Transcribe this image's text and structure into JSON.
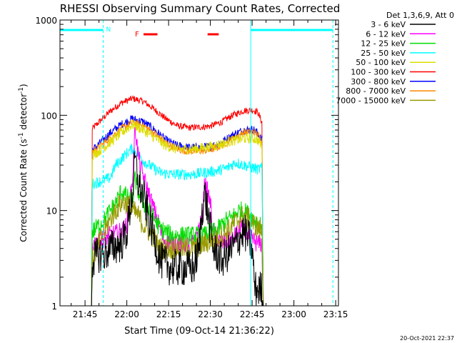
{
  "chart_data": {
    "type": "line",
    "title": "RHESSI Observing Summary Count Rates, Corrected",
    "xlabel": "Start Time (09-Oct-14 21:36:22)",
    "ylabel_main": "Corrected Count Rate (s",
    "ylabel_sup1": "-1",
    "ylabel_mid": " detector",
    "ylabel_sup2": "-1",
    "ylabel_end": ")",
    "x_unit": "minutes since 21:36:22",
    "xlim": [
      0,
      100
    ],
    "ylim": [
      1,
      1000
    ],
    "yscale": "log",
    "x_ticks": [
      {
        "t": 9,
        "label": "21:45"
      },
      {
        "t": 24,
        "label": "22:00"
      },
      {
        "t": 39,
        "label": "22:15"
      },
      {
        "t": 54,
        "label": "22:30"
      },
      {
        "t": 69,
        "label": "22:45"
      },
      {
        "t": 84,
        "label": "23:00"
      },
      {
        "t": 99,
        "label": "23:15"
      }
    ],
    "y_ticks": [
      {
        "v": 1,
        "label": "1"
      },
      {
        "v": 10,
        "label": "10"
      },
      {
        "v": 100,
        "label": "100"
      },
      {
        "v": 1000,
        "label": "1000"
      }
    ],
    "legend": {
      "header": "Det 1,3,6,9, Att 0",
      "placement": "right",
      "entries": [
        {
          "label": "3 - 6 keV",
          "color": "#000000"
        },
        {
          "label": "6 - 12 keV",
          "color": "#ff00ff"
        },
        {
          "label": "12 - 25 keV",
          "color": "#00dd00"
        },
        {
          "label": "25 - 50 keV",
          "color": "#00ffff"
        },
        {
          "label": "50 - 100 keV",
          "color": "#dddd00"
        },
        {
          "label": "100 - 300 keV",
          "color": "#ff0000"
        },
        {
          "label": "300 - 800 keV",
          "color": "#0000ff"
        },
        {
          "label": "800 - 7000 keV",
          "color": "#ff8800"
        },
        {
          "label": "7000 - 15000 keV",
          "color": "#999900"
        }
      ]
    },
    "annotations": {
      "night_label": "N",
      "flare_label": "F",
      "night_color": "#00ffff",
      "flare_color": "#ff0000",
      "night_bars": [
        [
          0,
          15.5
        ],
        [
          68.5,
          98
        ]
      ],
      "night_markers": [
        0,
        15.5,
        68.5,
        98
      ],
      "flare_bars": [
        [
          30,
          35
        ],
        [
          53,
          57
        ]
      ]
    },
    "series": [
      {
        "name": "100 - 300 keV",
        "color": "#ff0000",
        "noise": 0.035,
        "points": [
          [
            11.3,
            1
          ],
          [
            11.6,
            72
          ],
          [
            14,
            85
          ],
          [
            18,
            110
          ],
          [
            22,
            135
          ],
          [
            26,
            150
          ],
          [
            30,
            140
          ],
          [
            34,
            115
          ],
          [
            38,
            92
          ],
          [
            42,
            78
          ],
          [
            46,
            74
          ],
          [
            50,
            75
          ],
          [
            54,
            77
          ],
          [
            58,
            85
          ],
          [
            62,
            100
          ],
          [
            66,
            112
          ],
          [
            69.5,
            113
          ],
          [
            71,
            108
          ],
          [
            72.5,
            85
          ],
          [
            73,
            1
          ]
        ]
      },
      {
        "name": "300 - 800 keV",
        "color": "#0000ff",
        "noise": 0.045,
        "points": [
          [
            11.3,
            1
          ],
          [
            11.6,
            43
          ],
          [
            14,
            50
          ],
          [
            18,
            65
          ],
          [
            22,
            80
          ],
          [
            26,
            92
          ],
          [
            30,
            85
          ],
          [
            34,
            70
          ],
          [
            38,
            55
          ],
          [
            42,
            48
          ],
          [
            46,
            46
          ],
          [
            50,
            46
          ],
          [
            54,
            47
          ],
          [
            58,
            52
          ],
          [
            62,
            62
          ],
          [
            66,
            70
          ],
          [
            69.5,
            71
          ],
          [
            71,
            65
          ],
          [
            72.5,
            55
          ],
          [
            73,
            1
          ]
        ]
      },
      {
        "name": "800 - 7000 keV",
        "color": "#ff8800",
        "noise": 0.04,
        "points": [
          [
            11.3,
            1
          ],
          [
            11.6,
            42
          ],
          [
            14,
            46
          ],
          [
            18,
            58
          ],
          [
            22,
            72
          ],
          [
            26,
            84
          ],
          [
            30,
            78
          ],
          [
            34,
            64
          ],
          [
            38,
            52
          ],
          [
            42,
            44
          ],
          [
            46,
            42
          ],
          [
            50,
            42
          ],
          [
            54,
            43
          ],
          [
            58,
            48
          ],
          [
            62,
            57
          ],
          [
            66,
            66
          ],
          [
            69.5,
            67
          ],
          [
            71,
            63
          ],
          [
            72.5,
            55
          ],
          [
            73,
            1
          ]
        ]
      },
      {
        "name": "50 - 100 keV",
        "color": "#dddd00",
        "noise": 0.055,
        "points": [
          [
            11.3,
            1
          ],
          [
            11.6,
            38
          ],
          [
            14,
            42
          ],
          [
            18,
            52
          ],
          [
            22,
            65
          ],
          [
            26,
            80
          ],
          [
            30,
            70
          ],
          [
            34,
            58
          ],
          [
            38,
            48
          ],
          [
            42,
            44
          ],
          [
            46,
            44
          ],
          [
            50,
            45
          ],
          [
            54,
            47
          ],
          [
            58,
            50
          ],
          [
            62,
            54
          ],
          [
            66,
            57
          ],
          [
            69.5,
            57
          ],
          [
            71,
            55
          ],
          [
            72.5,
            48
          ],
          [
            73,
            1
          ]
        ]
      },
      {
        "name": "25 - 50 keV",
        "color": "#00ffff",
        "noise": 0.06,
        "points": [
          [
            11.3,
            1
          ],
          [
            11.6,
            19
          ],
          [
            14,
            20
          ],
          [
            18,
            22
          ],
          [
            20,
            30
          ],
          [
            24,
            40
          ],
          [
            26,
            45
          ],
          [
            28,
            40
          ],
          [
            30,
            33
          ],
          [
            32,
            30
          ],
          [
            36,
            25
          ],
          [
            40,
            24
          ],
          [
            44,
            24
          ],
          [
            48,
            24
          ],
          [
            52,
            25
          ],
          [
            56,
            26
          ],
          [
            60,
            28
          ],
          [
            63,
            32
          ],
          [
            66,
            30
          ],
          [
            69.5,
            28
          ],
          [
            71,
            27
          ],
          [
            72.5,
            28
          ],
          [
            73,
            1
          ]
        ]
      },
      {
        "name": "6 - 12 keV",
        "color": "#ff00ff",
        "noise": 0.1,
        "points": [
          [
            11.3,
            1
          ],
          [
            11.6,
            4.5
          ],
          [
            14,
            4.8
          ],
          [
            18,
            5.5
          ],
          [
            22,
            6
          ],
          [
            24,
            7
          ],
          [
            26,
            20
          ],
          [
            27,
            75
          ],
          [
            28,
            40
          ],
          [
            29,
            28
          ],
          [
            31,
            18
          ],
          [
            33,
            12
          ],
          [
            35,
            8
          ],
          [
            37,
            5
          ],
          [
            40,
            4.5
          ],
          [
            44,
            4.5
          ],
          [
            48,
            4.5
          ],
          [
            51,
            8
          ],
          [
            52,
            20
          ],
          [
            54,
            12
          ],
          [
            55,
            6
          ],
          [
            58,
            4.5
          ],
          [
            62,
            5
          ],
          [
            64,
            6
          ],
          [
            65,
            7
          ],
          [
            66,
            6
          ],
          [
            69,
            5
          ],
          [
            71,
            4.5
          ],
          [
            72.5,
            4.5
          ],
          [
            73,
            1
          ]
        ]
      },
      {
        "name": "12 - 25 keV",
        "color": "#00dd00",
        "noise": 0.1,
        "points": [
          [
            11.3,
            1
          ],
          [
            11.6,
            6
          ],
          [
            14,
            7
          ],
          [
            16,
            8
          ],
          [
            18,
            10
          ],
          [
            20,
            12
          ],
          [
            22,
            16
          ],
          [
            24,
            14
          ],
          [
            26,
            12
          ],
          [
            27,
            22
          ],
          [
            28,
            16
          ],
          [
            30,
            12
          ],
          [
            32,
            10
          ],
          [
            34,
            8
          ],
          [
            36,
            6.5
          ],
          [
            40,
            5.5
          ],
          [
            44,
            5.5
          ],
          [
            48,
            5.5
          ],
          [
            52,
            5.5
          ],
          [
            54,
            6
          ],
          [
            56,
            6
          ],
          [
            58,
            7
          ],
          [
            60,
            8
          ],
          [
            62,
            8.5
          ],
          [
            64,
            10
          ],
          [
            66,
            10
          ],
          [
            68,
            9
          ],
          [
            70,
            8
          ],
          [
            72.5,
            7
          ],
          [
            73,
            1
          ]
        ]
      },
      {
        "name": "7000 - 15000 keV",
        "color": "#999900",
        "noise": 0.12,
        "points": [
          [
            11.3,
            1
          ],
          [
            11.6,
            3
          ],
          [
            14,
            4.5
          ],
          [
            16,
            6
          ],
          [
            18,
            8
          ],
          [
            20,
            10
          ],
          [
            22,
            12
          ],
          [
            24,
            12
          ],
          [
            26,
            10
          ],
          [
            28,
            9
          ],
          [
            30,
            7
          ],
          [
            32,
            6
          ],
          [
            34,
            5
          ],
          [
            36,
            4
          ],
          [
            40,
            4
          ],
          [
            44,
            4
          ],
          [
            48,
            4
          ],
          [
            52,
            4.5
          ],
          [
            56,
            5
          ],
          [
            60,
            6
          ],
          [
            62,
            7
          ],
          [
            64,
            8
          ],
          [
            66,
            9
          ],
          [
            68,
            8
          ],
          [
            70,
            7
          ],
          [
            72.5,
            6
          ],
          [
            73,
            1
          ]
        ]
      },
      {
        "name": "3 - 6 keV",
        "color": "#000000",
        "noise": 0.2,
        "points": [
          [
            11.3,
            1
          ],
          [
            11.6,
            3
          ],
          [
            14,
            3.5
          ],
          [
            16,
            3.5
          ],
          [
            18,
            4
          ],
          [
            22,
            4.5
          ],
          [
            24,
            6
          ],
          [
            26,
            15
          ],
          [
            27,
            35
          ],
          [
            28,
            20
          ],
          [
            30,
            14
          ],
          [
            32,
            8
          ],
          [
            34,
            5
          ],
          [
            36,
            3
          ],
          [
            40,
            2.5
          ],
          [
            44,
            2.5
          ],
          [
            48,
            2.5
          ],
          [
            50,
            4
          ],
          [
            51,
            10
          ],
          [
            52,
            15
          ],
          [
            53,
            10
          ],
          [
            55,
            4
          ],
          [
            58,
            3
          ],
          [
            62,
            4
          ],
          [
            64,
            5
          ],
          [
            66,
            6
          ],
          [
            68,
            5
          ],
          [
            69,
            4
          ],
          [
            70,
            1.5
          ],
          [
            72.5,
            1.5
          ],
          [
            73,
            1
          ]
        ]
      }
    ],
    "footer_date": "20-Oct-2021 22:37"
  }
}
